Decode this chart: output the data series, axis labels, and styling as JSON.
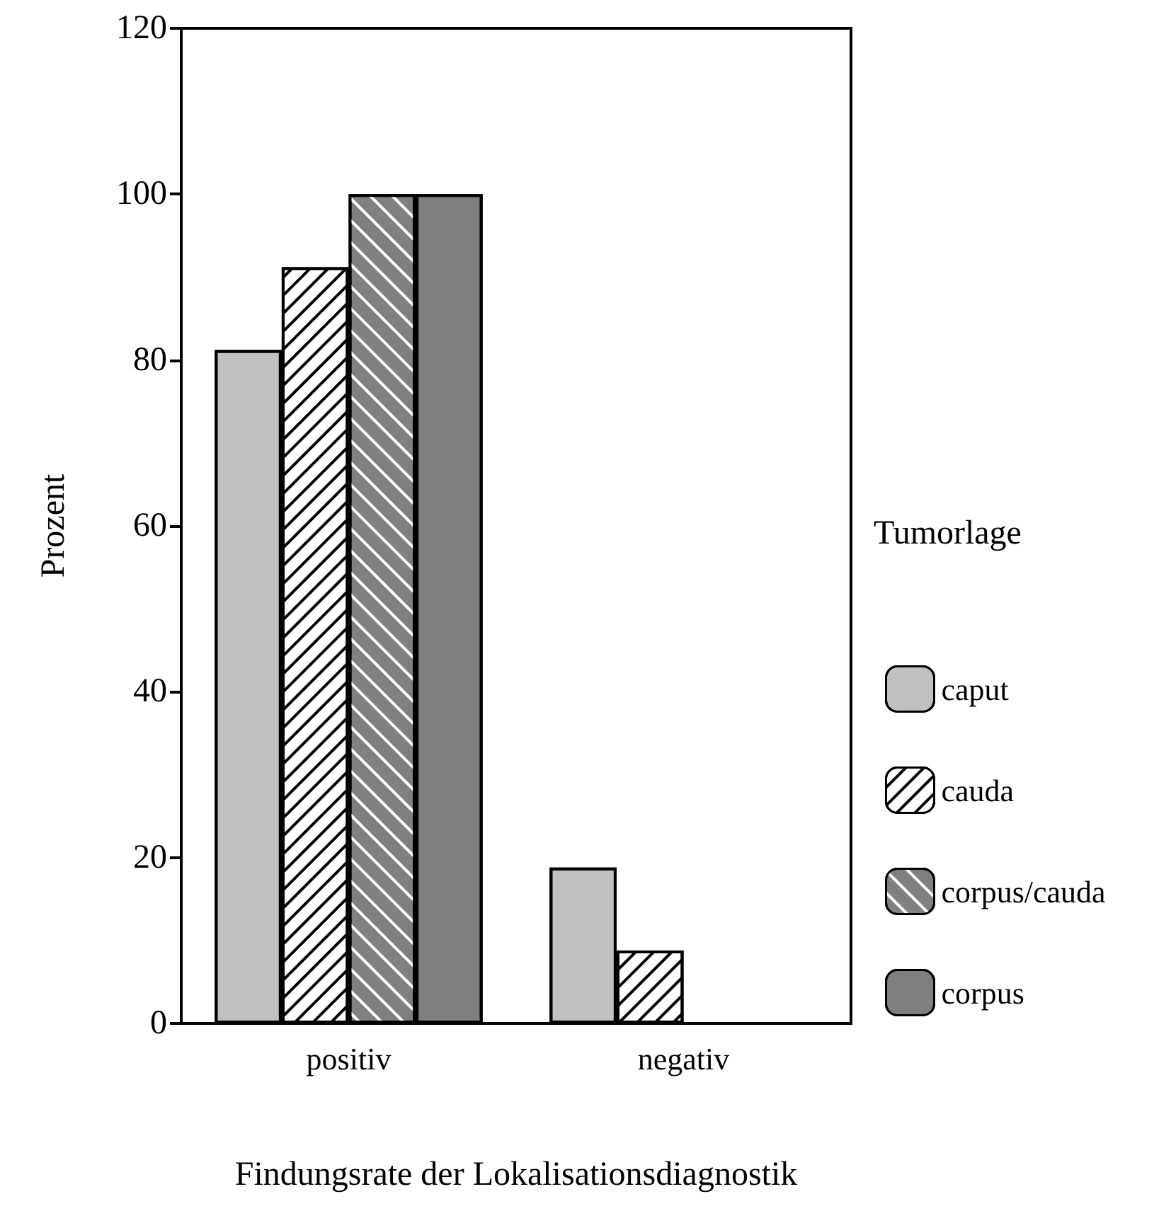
{
  "chart_data": {
    "type": "bar",
    "xlabel": "Findungsrate der Lokalisationsdiagnostik",
    "ylabel": "Prozent",
    "legend_title": "Tumorlage",
    "categories": [
      "positiv",
      "negativ"
    ],
    "series": [
      {
        "name": "caput",
        "color": "#c0c0c0",
        "values": [
          81.2,
          18.8
        ]
      },
      {
        "name": "cauda",
        "color": "#ffffff",
        "values": [
          91.2,
          8.8
        ]
      },
      {
        "name": "corpus/cauda",
        "color": "#808080",
        "values": [
          100,
          0
        ]
      },
      {
        "name": "corpus",
        "color": "#7f7f7f",
        "values": [
          100,
          0
        ]
      }
    ],
    "ylim": [
      0,
      120
    ],
    "yticks": [
      0,
      20,
      40,
      60,
      80,
      100,
      120
    ],
    "grid": false,
    "legend": "right"
  }
}
